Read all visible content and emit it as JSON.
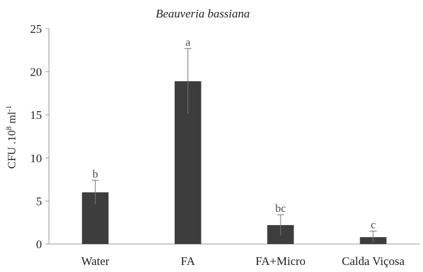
{
  "chart_data": {
    "type": "bar",
    "title": "Beauveria bassiana",
    "ylabel": {
      "main": "CFU .10",
      "sup1": "8",
      "mid": " ml",
      "sup2": "-1"
    },
    "xlabel": "",
    "categories": [
      "Water",
      "FA",
      "FA+Micro",
      "Calda Viçosa"
    ],
    "values": [
      6.0,
      18.9,
      2.2,
      0.8
    ],
    "errors": [
      1.4,
      3.8,
      1.2,
      0.7
    ],
    "significance": [
      "b",
      "a",
      "bc",
      "c"
    ],
    "ylim": [
      0,
      25
    ],
    "yticks": [
      "0",
      "5",
      "10",
      "15",
      "20",
      "25"
    ],
    "grid": false,
    "legend": "none",
    "bar_color": "#3d3d3d",
    "axis_color": "#999999"
  }
}
